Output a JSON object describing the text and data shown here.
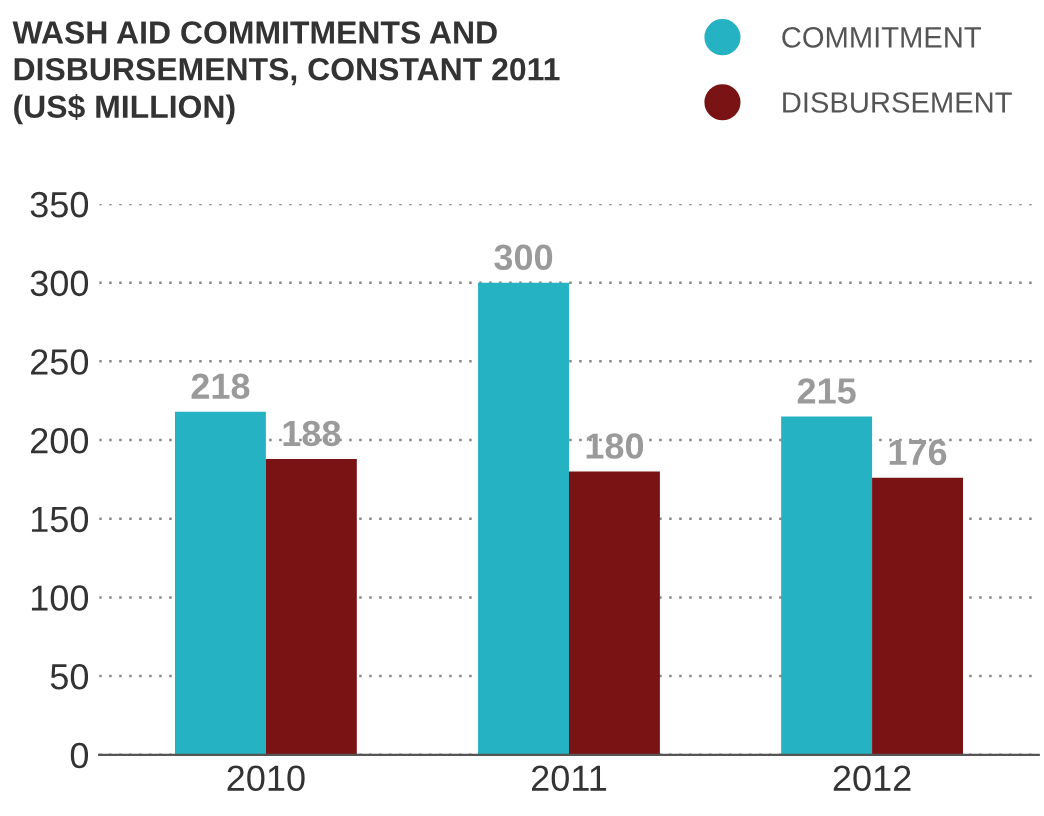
{
  "chart_data": {
    "type": "bar",
    "title": "WASH AID COMMITMENTS AND\nDISBURSEMENTS, CONSTANT 2011\n(US$ MILLION)",
    "categories": [
      "2010",
      "2011",
      "2012"
    ],
    "series": [
      {
        "name": "COMMITMENT",
        "color": "#25b2c2",
        "values": [
          218,
          300,
          215
        ]
      },
      {
        "name": "DISBURSEMENT",
        "color": "#7a1414",
        "values": [
          188,
          180,
          176
        ]
      }
    ],
    "ylim": [
      0,
      350
    ],
    "yticks": [
      0,
      50,
      100,
      150,
      200,
      250,
      300,
      350
    ],
    "grid": "y",
    "legend": "top right",
    "data_labels": true
  }
}
